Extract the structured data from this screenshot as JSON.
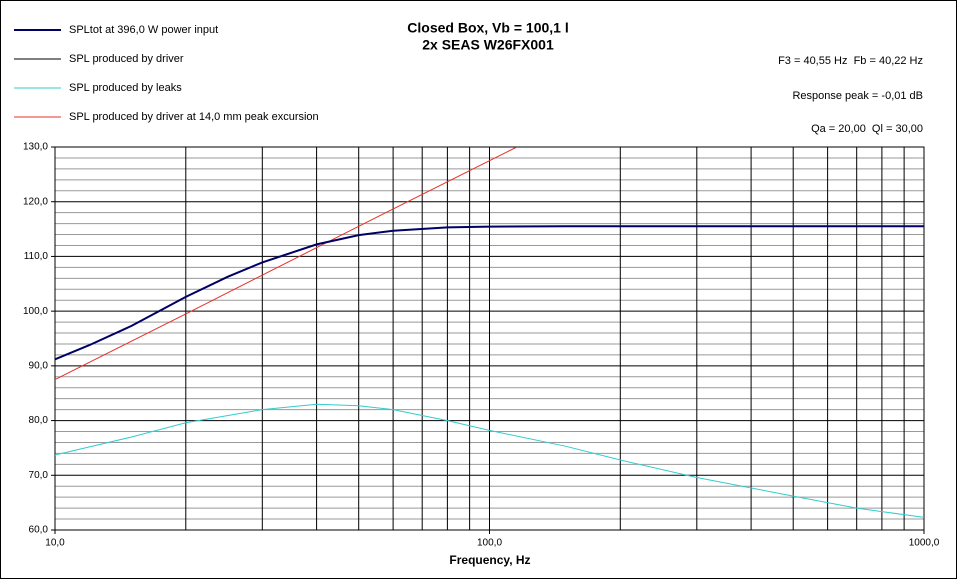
{
  "chart_data": {
    "type": "line",
    "title": "Closed Box, Vb = 100,1 l",
    "subtitle": "2x SEAS W26FX001",
    "x_label": "Frequency, Hz",
    "annotations": [
      "F3 = 40,55 Hz  Fb = 40,22 Hz",
      "Response peak = -0,01 dB",
      "Qa = 20,00  Ql = 30,00"
    ],
    "log_x": true,
    "xlim": [
      10,
      1000
    ],
    "xticks": [
      {
        "value": 10,
        "label": "10,0"
      },
      {
        "value": 100,
        "label": "100,0"
      },
      {
        "value": 1000,
        "label": "1000,0"
      }
    ],
    "xgrid": [
      20,
      30,
      40,
      50,
      60,
      70,
      80,
      90,
      200,
      300,
      400,
      500,
      600,
      700,
      800,
      900
    ],
    "ylim": [
      60,
      130
    ],
    "yticks": [
      {
        "value": 60,
        "label": "60,0"
      },
      {
        "value": 70,
        "label": "70,0"
      },
      {
        "value": 80,
        "label": "80,0"
      },
      {
        "value": 90,
        "label": "90,0"
      },
      {
        "value": 100,
        "label": "100,0"
      },
      {
        "value": 110,
        "label": "110,0"
      },
      {
        "value": 120,
        "label": "120,0"
      },
      {
        "value": 130,
        "label": "130,0"
      }
    ],
    "ygrid": [
      62,
      64,
      66,
      68,
      72,
      74,
      76,
      78,
      82,
      84,
      86,
      88,
      92,
      94,
      96,
      98,
      102,
      104,
      106,
      108,
      112,
      114,
      116,
      118,
      122,
      124,
      126,
      128
    ],
    "grid": true,
    "series": [
      {
        "name": "SPLtot at 396,0 W power input",
        "color": "#000066",
        "width": 2,
        "x": [
          10,
          12,
          15,
          20,
          25,
          30,
          40,
          50,
          60,
          80,
          100,
          150,
          200,
          300,
          500,
          1000
        ],
        "values": [
          91.2,
          93.8,
          97.3,
          102.6,
          106.3,
          108.9,
          112.2,
          113.9,
          114.7,
          115.3,
          115.45,
          115.5,
          115.5,
          115.5,
          115.5,
          115.5
        ]
      },
      {
        "name": "SPL produced by driver",
        "color": "#000000",
        "width": 1,
        "x": [
          10,
          12,
          15,
          20,
          25,
          30,
          40,
          50,
          60,
          80,
          100,
          150,
          200,
          300,
          500,
          1000
        ],
        "values": [
          91.2,
          93.8,
          97.3,
          102.6,
          106.3,
          108.9,
          112.2,
          113.9,
          114.7,
          115.3,
          115.45,
          115.5,
          115.5,
          115.5,
          115.5,
          115.5
        ]
      },
      {
        "name": "SPL produced by leaks",
        "color": "#33cccc",
        "width": 1,
        "x": [
          10,
          15,
          20,
          30,
          40,
          50,
          60,
          80,
          100,
          150,
          200,
          300,
          500,
          700,
          1000
        ],
        "values": [
          73.7,
          77,
          79.6,
          82,
          83,
          82.7,
          82,
          80,
          78.2,
          75.3,
          72.8,
          69.6,
          66.2,
          64,
          62.3
        ]
      },
      {
        "name": "SPL produced by driver at 14,0 mm peak excursion",
        "color": "#e8302a",
        "width": 1,
        "x": [
          10,
          20,
          50,
          100,
          115
        ],
        "values": [
          87.5,
          99.5,
          115.5,
          127.5,
          129.9
        ]
      }
    ]
  }
}
